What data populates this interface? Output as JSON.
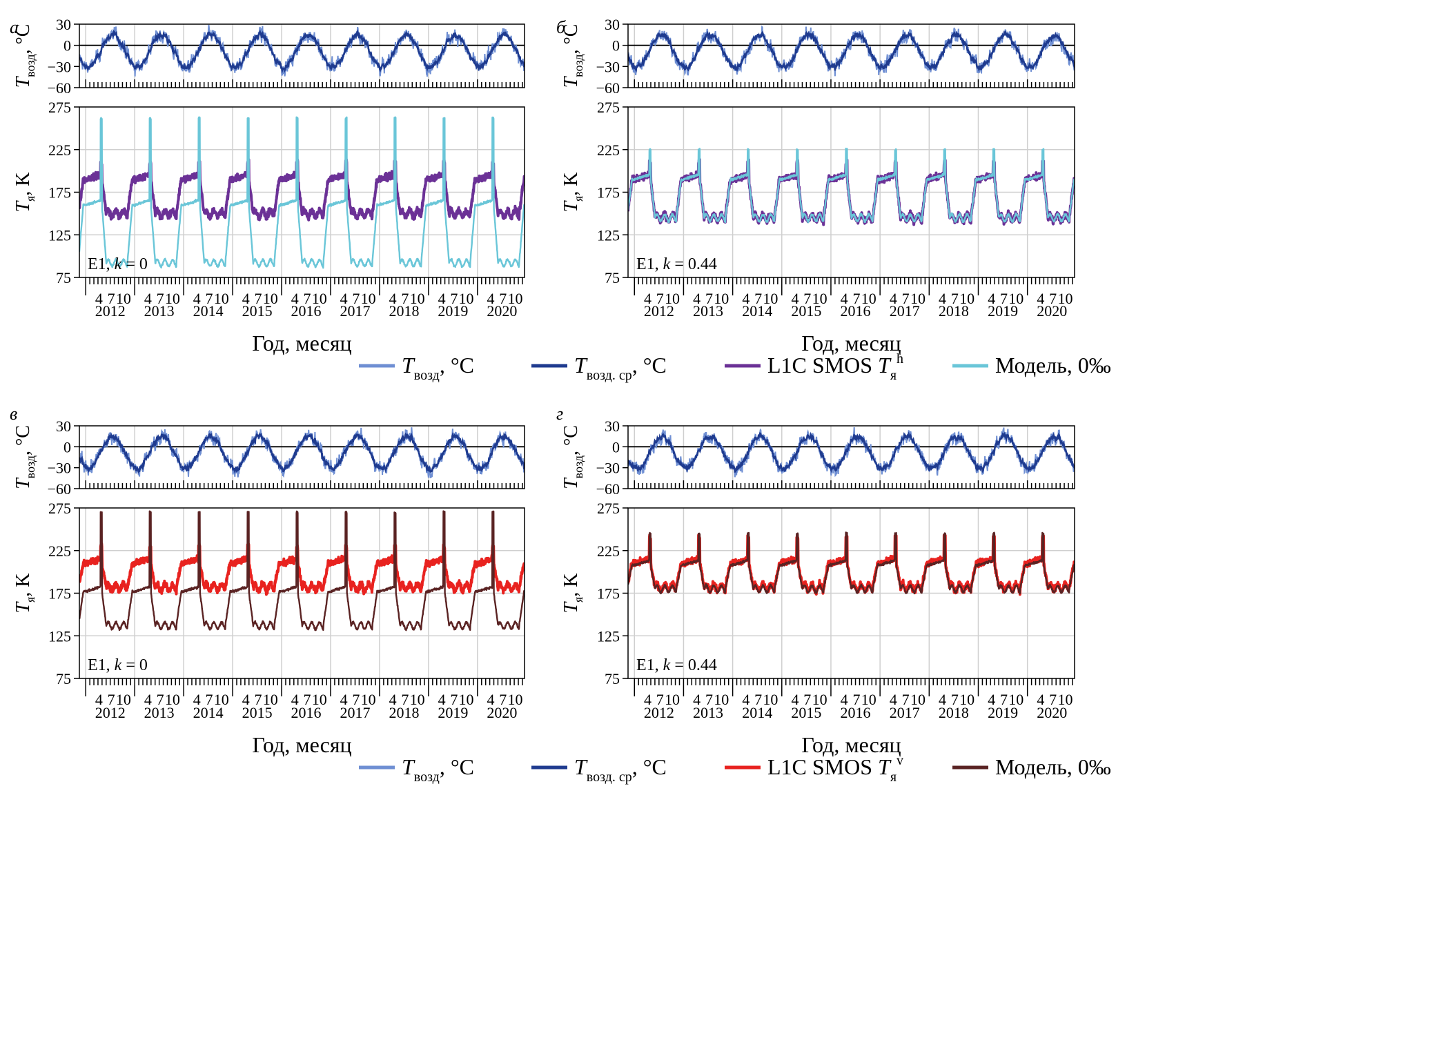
{
  "figure": {
    "x_axis": {
      "month_ticks": [
        "4",
        "7",
        "10"
      ],
      "years": [
        "2012",
        "2013",
        "2014",
        "2015",
        "2016",
        "2017",
        "2018",
        "2019",
        "2020"
      ],
      "xlabel": "Год, месяц"
    },
    "air_axis": {
      "label_main": "T",
      "label_sub": "возд",
      "label_unit": ", °C",
      "ylim": [
        -60,
        30
      ],
      "ticks": [
        "30",
        "0",
        "−30",
        "−60"
      ]
    },
    "tb_axis": {
      "label_main": "T",
      "label_sub": "я",
      "label_unit": ", K",
      "ylim": [
        75,
        275
      ],
      "ticks": [
        "275",
        "225",
        "175",
        "125",
        "75"
      ]
    },
    "legend_top": {
      "items": [
        {
          "main": "T",
          "sub": "возд",
          "unit": ", °C",
          "color": "#6f8fd3"
        },
        {
          "main": "T",
          "sub": "возд. ср",
          "unit": ", °C",
          "color": "#1f3b8f"
        },
        {
          "pre": "L1C SMOS ",
          "main": "T",
          "sub": "я",
          "sup": "h",
          "color": "#6b3196"
        },
        {
          "pre": "Модель, 0‰",
          "color": "#6ac6d8"
        }
      ]
    },
    "legend_bottom": {
      "items": [
        {
          "main": "T",
          "sub": "возд",
          "unit": ", °C",
          "color": "#6f8fd3"
        },
        {
          "main": "T",
          "sub": "возд. ср",
          "unit": ", °C",
          "color": "#1f3b8f"
        },
        {
          "pre": "L1C SMOS ",
          "main": "T",
          "sub": "я",
          "sup": "v",
          "color": "#e8221f"
        },
        {
          "pre": "Модель, 0‰",
          "color": "#5a2323"
        }
      ]
    }
  },
  "chart_data": [
    {
      "panel": "а",
      "type": "line",
      "annotation": {
        "site": "E1, ",
        "k_label": "k",
        "k_value": " = 0"
      },
      "colors": {
        "air": "#6f8fd3",
        "air_mean": "#1f3b8f",
        "grid": "#cfcfcf",
        "smos": "#6b3196",
        "model": "#6ac6d8"
      },
      "air_temperature": {
        "mean_annual": -8,
        "summer_peak": 15,
        "winter_min": -28,
        "unit": "°C"
      },
      "smos_tb": {
        "summer": 190,
        "winter": 150,
        "peak_spring": 210,
        "polarization": "h",
        "unit": "K"
      },
      "model_tb": {
        "summer": 160,
        "winter": 92,
        "peak_spring": 262,
        "unit": "K"
      }
    },
    {
      "panel": "б",
      "type": "line",
      "annotation": {
        "site": "E1, ",
        "k_label": "k",
        "k_value": " = 0.44"
      },
      "colors": {
        "air": "#6f8fd3",
        "air_mean": "#1f3b8f",
        "grid": "#cfcfcf",
        "smos": "#6b3196",
        "model": "#6ac6d8"
      },
      "air_temperature": {
        "mean_annual": -8,
        "summer_peak": 15,
        "winter_min": -28,
        "unit": "°C"
      },
      "smos_tb": {
        "summer": 190,
        "winter": 145,
        "peak_spring": 210,
        "polarization": "h",
        "unit": "K"
      },
      "model_tb": {
        "summer": 190,
        "winter": 145,
        "peak_spring": 225,
        "unit": "K"
      }
    },
    {
      "panel": "в",
      "type": "line",
      "annotation": {
        "site": "E1, ",
        "k_label": "k",
        "k_value": " = 0"
      },
      "colors": {
        "air": "#6f8fd3",
        "air_mean": "#1f3b8f",
        "grid": "#cfcfcf",
        "smos": "#e8221f",
        "model": "#5a2323"
      },
      "air_temperature": {
        "mean_annual": -8,
        "summer_peak": 15,
        "winter_min": -28,
        "unit": "°C"
      },
      "smos_tb": {
        "summer": 210,
        "winter": 182,
        "peak_spring": 230,
        "polarization": "v",
        "unit": "K"
      },
      "model_tb": {
        "summer": 177,
        "winter": 137,
        "peak_spring": 270,
        "unit": "K"
      }
    },
    {
      "panel": "г",
      "type": "line",
      "annotation": {
        "site": "E1, ",
        "k_label": "k",
        "k_value": " = 0.44"
      },
      "colors": {
        "air": "#6f8fd3",
        "air_mean": "#1f3b8f",
        "grid": "#cfcfcf",
        "smos": "#e8221f",
        "model": "#5a2323"
      },
      "air_temperature": {
        "mean_annual": -8,
        "summer_peak": 15,
        "winter_min": -28,
        "unit": "°C"
      },
      "smos_tb": {
        "summer": 210,
        "winter": 182,
        "peak_spring": 240,
        "polarization": "v",
        "unit": "K"
      },
      "model_tb": {
        "summer": 208,
        "winter": 180,
        "peak_spring": 245,
        "unit": "K"
      }
    }
  ]
}
